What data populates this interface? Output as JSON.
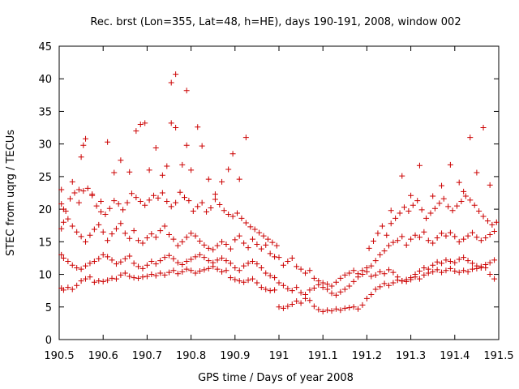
{
  "chart_data": {
    "type": "scatter",
    "title": "Rec. brst (Lon=355, Lat=48, h=HE), days 190-191, 2008, window 002",
    "xlabel": "GPS time / Days of year 2008",
    "ylabel": "STEC from uqrg / TECUs",
    "xlim": [
      190.5,
      191.5
    ],
    "ylim": [
      0,
      45
    ],
    "x_ticks": [
      "190.5",
      "190.6",
      "190.7",
      "190.8",
      "190.9",
      "191",
      "191.1",
      "191.2",
      "191.3",
      "191.4",
      "191.5"
    ],
    "y_ticks": [
      "0",
      "5",
      "10",
      "15",
      "20",
      "25",
      "30",
      "35",
      "40",
      "45"
    ],
    "grid": false,
    "marker": "plus",
    "color": "#cc0000",
    "series": [
      {
        "x": [
          190.505,
          190.51,
          190.52,
          190.53,
          190.54,
          190.55,
          190.56,
          190.57,
          190.58,
          190.59,
          190.6,
          190.61,
          190.62,
          190.63,
          190.64,
          190.65,
          190.66,
          190.67,
          190.68,
          190.69,
          190.7,
          190.71,
          190.72,
          190.73,
          190.74,
          190.75,
          190.76,
          190.77,
          190.78,
          190.79,
          190.8,
          190.81,
          190.82,
          190.83,
          190.84,
          190.85,
          190.86,
          190.87,
          190.88,
          190.89,
          190.9,
          190.91,
          190.92,
          190.93,
          190.94,
          190.95,
          190.96,
          190.97,
          190.98,
          190.99,
          191.0,
          191.01,
          191.02,
          191.03,
          191.04,
          191.05,
          191.06,
          191.07,
          191.08,
          191.09,
          191.1,
          191.11,
          191.12,
          191.13,
          191.14,
          191.15,
          191.16,
          191.17,
          191.18,
          191.19,
          191.2,
          191.21,
          191.22,
          191.23,
          191.24,
          191.25,
          191.26,
          191.27,
          191.28,
          191.29,
          191.3,
          191.31,
          191.32,
          191.33,
          191.34,
          191.35,
          191.36,
          191.37,
          191.38,
          191.39,
          191.4,
          191.41,
          191.42,
          191.43,
          191.44,
          191.45,
          191.46,
          191.47,
          191.48,
          191.49
        ],
        "y": [
          7.9,
          7.6,
          8.0,
          7.7,
          8.3,
          9.0,
          9.3,
          9.6,
          8.8,
          9.0,
          8.9,
          9.1,
          9.4,
          9.3,
          9.9,
          10.2,
          9.7,
          9.5,
          9.4,
          9.6,
          9.7,
          10.0,
          9.8,
          10.2,
          9.9,
          10.3,
          10.6,
          10.1,
          10.4,
          10.8,
          10.6,
          10.2,
          10.5,
          10.7,
          10.9,
          11.2,
          10.8,
          10.4,
          10.6,
          9.5,
          9.2,
          9.0,
          8.8,
          9.1,
          9.3,
          8.7,
          8.0,
          7.7,
          7.5,
          7.6,
          5.0,
          4.8,
          5.1,
          5.4,
          5.9,
          5.6,
          6.3,
          6.0,
          5.1,
          4.6,
          4.3,
          4.5,
          4.4,
          4.7,
          4.5,
          4.8,
          4.9,
          5.0,
          4.7,
          5.3,
          6.3,
          6.9,
          7.7,
          8.1,
          8.6,
          8.3,
          8.7,
          9.1,
          9.0,
          8.9,
          9.2,
          9.6,
          9.3,
          9.9,
          10.2,
          10.4,
          10.7,
          10.3,
          10.6,
          10.9,
          10.5,
          10.3,
          10.6,
          10.4,
          10.8,
          10.9,
          11.2,
          11.0,
          10.0,
          9.3
        ]
      },
      {
        "x": [
          190.505,
          190.51,
          190.52,
          190.53,
          190.54,
          190.55,
          190.56,
          190.57,
          190.58,
          190.59,
          190.6,
          190.61,
          190.62,
          190.63,
          190.64,
          190.65,
          190.66,
          190.67,
          190.68,
          190.69,
          190.7,
          190.71,
          190.72,
          190.73,
          190.74,
          190.75,
          190.76,
          190.77,
          190.78,
          190.79,
          190.8,
          190.81,
          190.82,
          190.83,
          190.84,
          190.85,
          190.86,
          190.87,
          190.88,
          190.89,
          190.9,
          190.91,
          190.92,
          190.93,
          190.94,
          190.95,
          190.96,
          190.97,
          190.98,
          190.99,
          191.0,
          191.01,
          191.02,
          191.03,
          191.04,
          191.05,
          191.06,
          191.07,
          191.08,
          191.09,
          191.1,
          191.11,
          191.12,
          191.13,
          191.14,
          191.15,
          191.16,
          191.17,
          191.18,
          191.19,
          191.2,
          191.21,
          191.22,
          191.23,
          191.24,
          191.25,
          191.26,
          191.27,
          191.28,
          191.29,
          191.3,
          191.31,
          191.32,
          191.33,
          191.34,
          191.35,
          191.36,
          191.37,
          191.38,
          191.39,
          191.4,
          191.41,
          191.42,
          191.43,
          191.44,
          191.45,
          191.46,
          191.47,
          191.48,
          191.49
        ],
        "y": [
          13.0,
          12.5,
          12.0,
          11.4,
          11.0,
          10.8,
          11.3,
          11.7,
          12.0,
          12.4,
          13.0,
          12.7,
          12.2,
          11.6,
          11.9,
          12.4,
          12.8,
          11.7,
          11.2,
          10.9,
          11.4,
          12.0,
          11.6,
          12.1,
          12.6,
          12.9,
          12.4,
          11.8,
          11.5,
          12.0,
          12.3,
          12.7,
          13.0,
          12.6,
          12.1,
          11.8,
          12.2,
          12.5,
          12.1,
          11.7,
          11.0,
          10.6,
          11.3,
          11.7,
          12.0,
          11.6,
          11.0,
          10.2,
          9.8,
          9.5,
          8.7,
          8.3,
          7.8,
          7.5,
          8.0,
          7.2,
          6.9,
          7.6,
          7.9,
          8.4,
          8.0,
          7.7,
          7.1,
          6.8,
          7.3,
          7.7,
          8.2,
          8.9,
          9.6,
          10.0,
          10.4,
          9.7,
          9.9,
          10.4,
          10.1,
          10.7,
          10.3,
          9.6,
          9.0,
          9.2,
          9.5,
          10.0,
          10.5,
          11.0,
          10.8,
          11.4,
          11.9,
          11.7,
          12.2,
          12.0,
          11.8,
          12.3,
          12.6,
          12.1,
          11.7,
          11.3,
          11.0,
          11.5,
          11.8,
          12.2
        ]
      },
      {
        "x": [
          190.505,
          190.51,
          190.52,
          190.53,
          190.54,
          190.55,
          190.56,
          190.57,
          190.58,
          190.59,
          190.6,
          190.61,
          190.62,
          190.63,
          190.64,
          190.65,
          190.66,
          190.67,
          190.68,
          190.69,
          190.7,
          190.71,
          190.72,
          190.73,
          190.74,
          190.75,
          190.76,
          190.77,
          190.78,
          190.79,
          190.8,
          190.81,
          190.82,
          190.83,
          190.84,
          190.85,
          190.86,
          190.87,
          190.88,
          190.89,
          190.9,
          190.91,
          190.92,
          190.93,
          190.94,
          190.95,
          190.96,
          190.97,
          190.98,
          190.99,
          191.0,
          191.01,
          191.02,
          191.03,
          191.04,
          191.05,
          191.06,
          191.07,
          191.08,
          191.09,
          191.1,
          191.11,
          191.12,
          191.13,
          191.14,
          191.15,
          191.16,
          191.17,
          191.18,
          191.19,
          191.2,
          191.21,
          191.22,
          191.23,
          191.24,
          191.25,
          191.26,
          191.27,
          191.28,
          191.29,
          191.3,
          191.31,
          191.32,
          191.33,
          191.34,
          191.35,
          191.36,
          191.37,
          191.38,
          191.39,
          191.4,
          191.41,
          191.42,
          191.43,
          191.44,
          191.45,
          191.46,
          191.47,
          191.48,
          191.49
        ],
        "y": [
          17.0,
          18.0,
          18.5,
          17.4,
          16.5,
          15.8,
          15.0,
          16.0,
          16.9,
          17.6,
          16.5,
          15.2,
          16.2,
          17.0,
          17.8,
          16.3,
          15.5,
          16.7,
          15.2,
          14.8,
          15.6,
          16.2,
          15.7,
          16.7,
          17.4,
          16.1,
          15.4,
          14.4,
          15.0,
          15.7,
          16.3,
          15.9,
          15.1,
          14.5,
          14.0,
          13.8,
          14.4,
          15.0,
          14.6,
          13.9,
          15.3,
          15.9,
          14.8,
          14.1,
          15.4,
          14.6,
          13.9,
          14.5,
          13.2,
          12.7,
          12.6,
          11.4,
          12.0,
          12.5,
          11.2,
          10.8,
          10.2,
          10.6,
          9.4,
          9.0,
          8.7,
          8.5,
          8.2,
          8.8,
          9.4,
          9.9,
          10.2,
          10.6,
          10.1,
          10.6,
          11.0,
          11.3,
          12.1,
          13.0,
          13.6,
          14.4,
          14.9,
          15.2,
          15.8,
          14.5,
          15.4,
          16.0,
          15.7,
          16.5,
          15.2,
          14.8,
          15.6,
          16.3,
          15.9,
          16.4,
          15.8,
          15.0,
          15.4,
          15.9,
          16.4,
          15.7,
          15.2,
          15.6,
          16.1,
          16.6
        ]
      },
      {
        "x": [
          190.505,
          190.515,
          190.525,
          190.535,
          190.545,
          190.555,
          190.565,
          190.575,
          190.585,
          190.595,
          190.605,
          190.615,
          190.625,
          190.635,
          190.645,
          190.655,
          190.665,
          190.675,
          190.685,
          190.695,
          190.705,
          190.715,
          190.725,
          190.735,
          190.745,
          190.755,
          190.765,
          190.775,
          190.785,
          190.795,
          190.805,
          190.815,
          190.825,
          190.835,
          190.845,
          190.855,
          190.865,
          190.875,
          190.885,
          190.895,
          190.905,
          190.915,
          190.925,
          190.935,
          190.945,
          190.955,
          190.965,
          190.975,
          190.985,
          190.995
        ],
        "y": [
          20.8,
          19.7,
          21.6,
          22.5,
          21.0,
          22.8,
          23.2,
          22.1,
          20.5,
          19.6,
          19.2,
          20.1,
          21.3,
          20.8,
          19.9,
          21.0,
          22.4,
          21.8,
          21.2,
          20.6,
          21.4,
          22.1,
          21.7,
          22.5,
          21.2,
          20.4,
          21.0,
          22.6,
          21.8,
          21.3,
          19.7,
          20.4,
          21.0,
          19.6,
          20.2,
          21.5,
          20.7,
          19.8,
          19.2,
          18.9,
          19.4,
          18.6,
          17.9,
          17.3,
          16.9,
          16.4,
          15.9,
          15.4,
          14.9,
          14.4
        ]
      },
      {
        "x": [
          191.205,
          191.215,
          191.225,
          191.235,
          191.245,
          191.255,
          191.265,
          191.275,
          191.285,
          191.295,
          191.305,
          191.315,
          191.325,
          191.335,
          191.345,
          191.355,
          191.365,
          191.375,
          191.385,
          191.395,
          191.405,
          191.415,
          191.425,
          191.435,
          191.445,
          191.455,
          191.465,
          191.475,
          191.485,
          191.495
        ],
        "y": [
          14.0,
          15.1,
          16.3,
          17.4,
          16.0,
          17.8,
          18.6,
          19.4,
          20.3,
          19.7,
          20.6,
          21.3,
          19.9,
          18.6,
          19.4,
          20.1,
          20.9,
          21.6,
          20.4,
          19.8,
          20.5,
          21.2,
          22.0,
          21.4,
          20.6,
          19.7,
          18.9,
          18.2,
          17.6,
          18.0
        ]
      },
      {
        "x": [
          190.505,
          190.51,
          190.53,
          190.545,
          190.56,
          190.575,
          190.595,
          190.61,
          190.625,
          190.64,
          190.66,
          190.675,
          190.685,
          190.695,
          190.705,
          190.72,
          190.735,
          190.745,
          190.755,
          190.765,
          190.78,
          190.79,
          190.8,
          190.815,
          190.825,
          190.84,
          190.855,
          190.87,
          190.885,
          190.895,
          190.91,
          190.925,
          191.255,
          191.28,
          191.3,
          191.32,
          191.35,
          191.37,
          191.39,
          191.41,
          191.42,
          191.435,
          191.45,
          191.465,
          191.48
        ],
        "y": [
          23.0,
          20.0,
          24.2,
          23.0,
          30.8,
          22.3,
          21.2,
          30.3,
          25.6,
          27.5,
          25.7,
          32.0,
          33.0,
          33.2,
          26.0,
          29.4,
          25.2,
          26.6,
          33.2,
          32.5,
          26.8,
          38.2,
          26.0,
          32.6,
          29.7,
          24.6,
          22.3,
          24.2,
          26.1,
          28.5,
          24.6,
          31.0,
          19.8,
          25.1,
          22.1,
          26.7,
          22.0,
          23.6,
          26.8,
          24.1,
          22.7,
          31.0,
          25.6,
          32.5,
          23.7
        ]
      },
      {
        "x": [
          190.55,
          190.555,
          190.755,
          190.765,
          190.79
        ],
        "y": [
          28.0,
          29.8,
          39.4,
          40.7,
          29.8
        ]
      }
    ]
  }
}
